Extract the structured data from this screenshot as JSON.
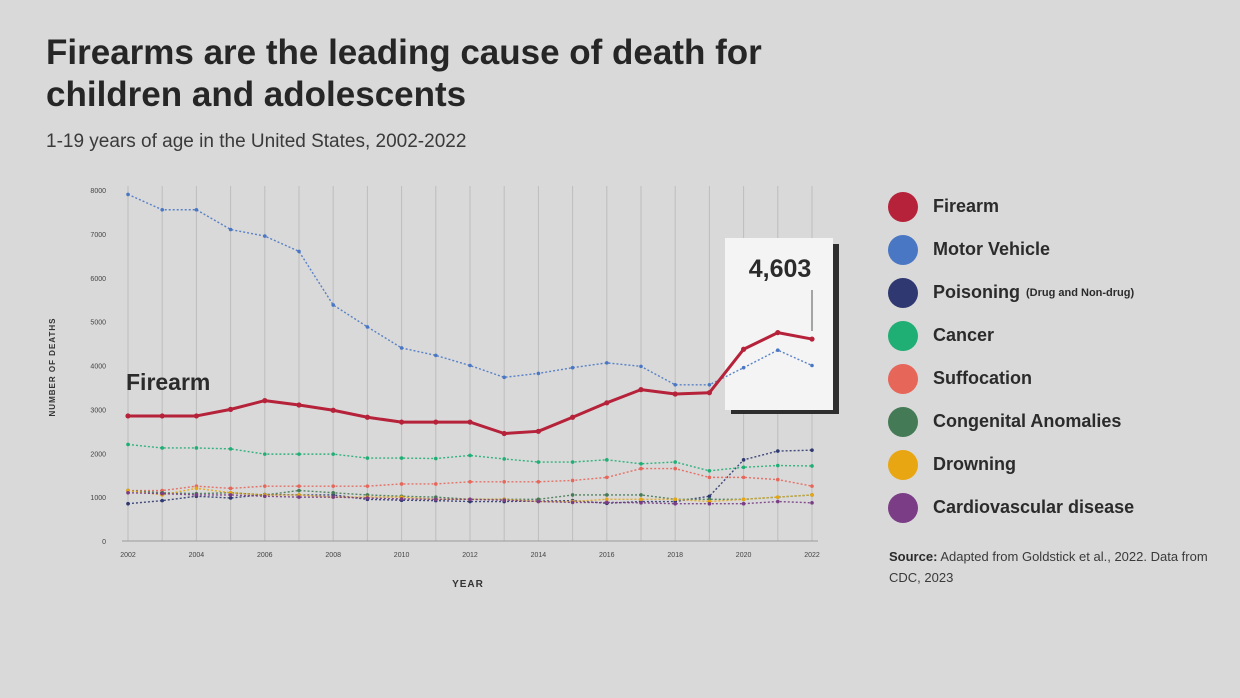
{
  "title": "Firearms are the leading cause of death for children and adolescents",
  "subtitle": "1-19 years of age in the United States, 2002-2022",
  "legend": [
    {
      "label": "Firearm",
      "note": "",
      "color": "#b5223a"
    },
    {
      "label": "Motor Vehicle",
      "note": "",
      "color": "#4a77c4"
    },
    {
      "label": "Poisoning",
      "note": "(Drug and Non-drug)",
      "color": "#2f3870"
    },
    {
      "label": "Cancer",
      "note": "",
      "color": "#1fae74"
    },
    {
      "label": "Suffocation",
      "note": "",
      "color": "#e7665a"
    },
    {
      "label": "Congenital Anomalies",
      "note": "",
      "color": "#447a55"
    },
    {
      "label": "Drowning",
      "note": "",
      "color": "#e8a612"
    },
    {
      "label": "Cardiovascular disease",
      "note": "",
      "color": "#7a3d86"
    }
  ],
  "source": {
    "label": "Source:",
    "text": "Adapted from Goldstick et al., 2022. Data from CDC, 2023"
  },
  "chart_data": {
    "type": "line",
    "title": "Firearms are the leading cause of death for children and adolescents",
    "subtitle": "1-19 years of age in the United States, 2002-2022",
    "xlabel": "YEAR",
    "ylabel": "NUMBER OF DEATHS",
    "ylim": [
      0,
      8000
    ],
    "yticks": [
      0,
      1000,
      2000,
      3000,
      4000,
      5000,
      6000,
      7000,
      8000
    ],
    "x": [
      2002,
      2003,
      2004,
      2005,
      2006,
      2007,
      2008,
      2009,
      2010,
      2011,
      2012,
      2013,
      2014,
      2015,
      2016,
      2017,
      2018,
      2019,
      2020,
      2021,
      2022
    ],
    "xticks": [
      2002,
      2004,
      2006,
      2008,
      2010,
      2012,
      2014,
      2016,
      2018,
      2020,
      2022
    ],
    "grid": "vertical",
    "legend_position": "right",
    "series": [
      {
        "name": "Firearm",
        "color": "#b5223a",
        "values": [
          2850,
          2850,
          2850,
          3000,
          3200,
          3100,
          2980,
          2820,
          2710,
          2710,
          2710,
          2450,
          2500,
          2820,
          3150,
          3450,
          3350,
          3380,
          4370,
          4750,
          4603
        ]
      },
      {
        "name": "Motor Vehicle",
        "color": "#4a77c4",
        "values": [
          7900,
          7550,
          7550,
          7100,
          6950,
          6600,
          5380,
          4880,
          4400,
          4230,
          4000,
          3730,
          3820,
          3950,
          4060,
          3980,
          3560,
          3560,
          3950,
          4350,
          4000
        ]
      },
      {
        "name": "Poisoning",
        "color": "#2f3870",
        "values": [
          850,
          920,
          1020,
          980,
          1060,
          1050,
          1050,
          950,
          930,
          920,
          900,
          900,
          910,
          920,
          860,
          900,
          900,
          1020,
          1850,
          2050,
          2070
        ]
      },
      {
        "name": "Cancer",
        "color": "#1fae74",
        "values": [
          2200,
          2120,
          2120,
          2100,
          1980,
          1980,
          1980,
          1890,
          1890,
          1880,
          1950,
          1870,
          1800,
          1800,
          1850,
          1760,
          1800,
          1600,
          1680,
          1720,
          1710
        ]
      },
      {
        "name": "Suffocation",
        "color": "#e7665a",
        "values": [
          1150,
          1150,
          1250,
          1200,
          1250,
          1250,
          1250,
          1250,
          1300,
          1300,
          1350,
          1350,
          1350,
          1380,
          1450,
          1650,
          1650,
          1450,
          1450,
          1400,
          1250
        ]
      },
      {
        "name": "Congenital Anomalies",
        "color": "#447a55",
        "values": [
          1150,
          1100,
          1080,
          1100,
          1050,
          1150,
          1100,
          1050,
          1020,
          1000,
          950,
          950,
          950,
          1050,
          1050,
          1050,
          950,
          950,
          950,
          1000,
          1050
        ]
      },
      {
        "name": "Drowning",
        "color": "#e8a612",
        "values": [
          1150,
          1050,
          1200,
          1100,
          1050,
          1050,
          1000,
          1000,
          1000,
          950,
          950,
          950,
          900,
          900,
          950,
          950,
          950,
          900,
          950,
          1000,
          1050
        ]
      },
      {
        "name": "Cardiovascular disease",
        "color": "#7a3d86",
        "values": [
          1100,
          1080,
          1050,
          1050,
          1020,
          1000,
          1000,
          980,
          960,
          950,
          950,
          930,
          900,
          880,
          880,
          870,
          850,
          850,
          850,
          900,
          870
        ]
      }
    ],
    "annotations": [
      {
        "text": "Firearm",
        "series": "Firearm",
        "x": 2002
      },
      {
        "text": "4,603",
        "series": "Firearm",
        "x": 2022,
        "value": 4603
      }
    ]
  }
}
